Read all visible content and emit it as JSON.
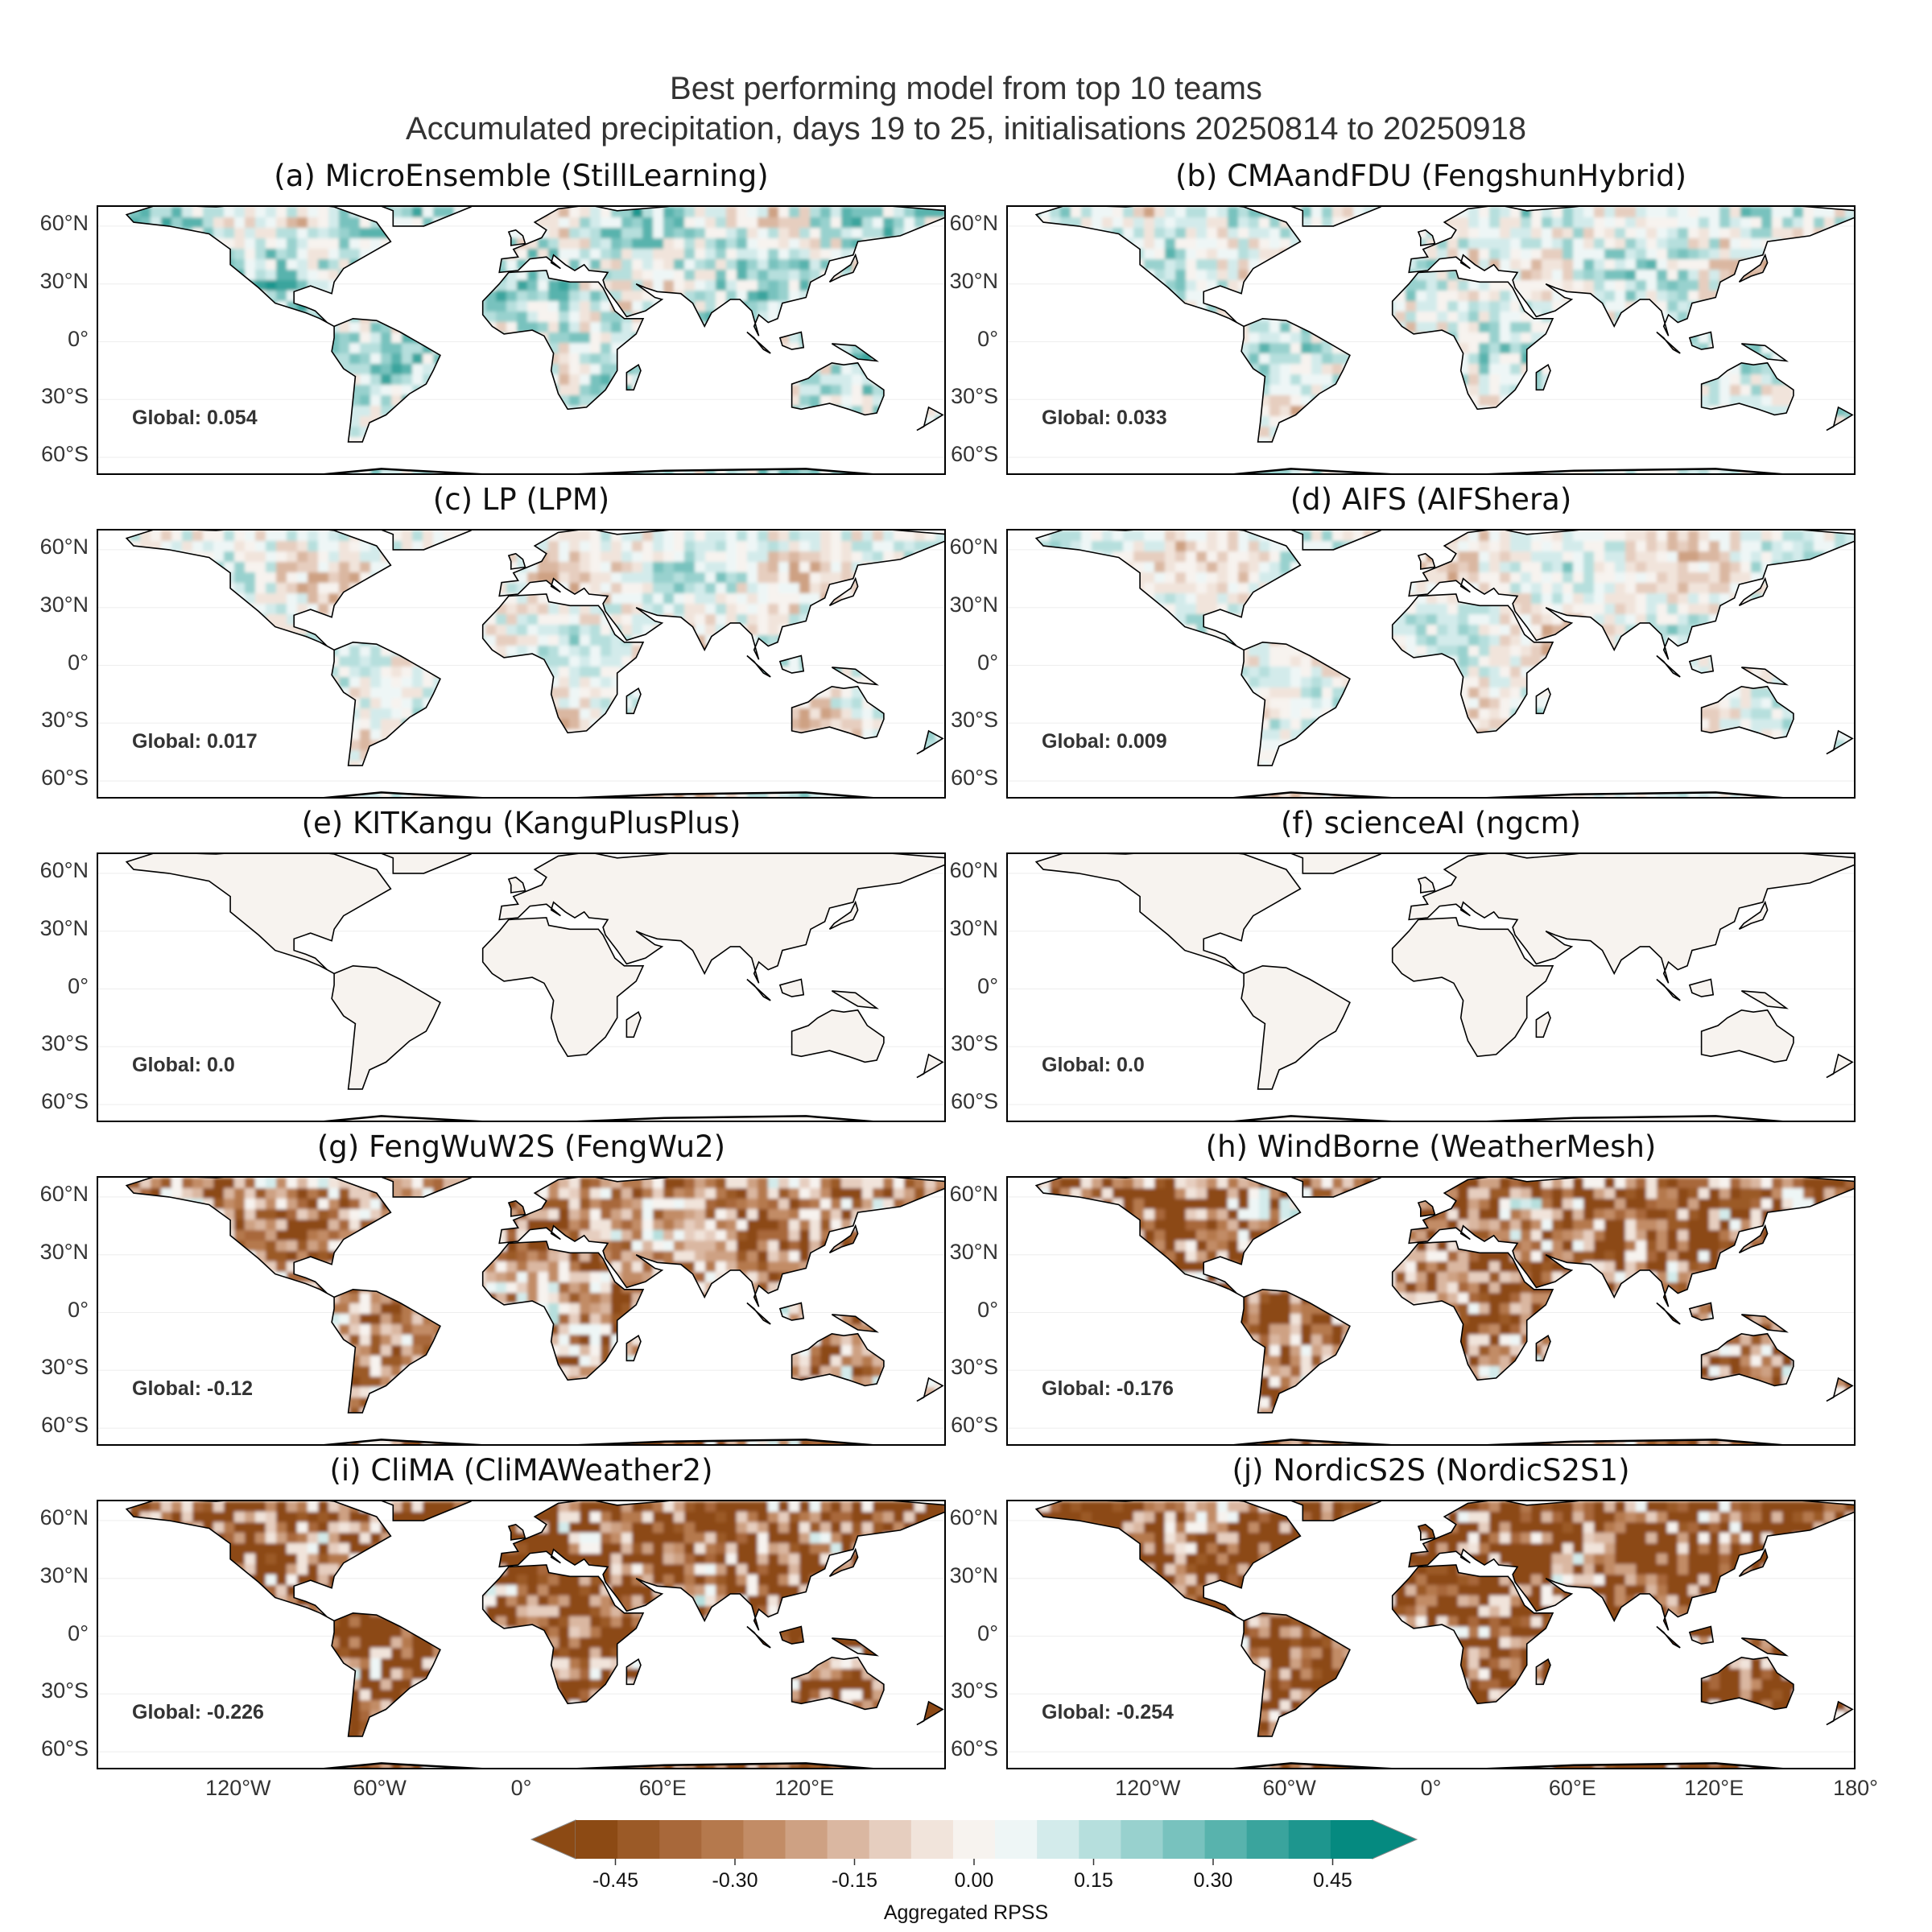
{
  "title_line1": "Best performing model from top 10 teams",
  "title_line2": "Accumulated precipitation, days 19 to 25, initialisations 20250814 to 20250918",
  "chart_data": {
    "type": "heatmap",
    "y_ticks": [
      "60°N",
      "30°N",
      "0°",
      "30°S",
      "60°S"
    ],
    "x_ticks_left": [
      "120°W",
      "60°W",
      "0°",
      "60°E",
      "120°E"
    ],
    "x_ticks_right": [
      "120°W",
      "60°W",
      "0°",
      "60°E",
      "120°E",
      "180°"
    ],
    "panels": [
      {
        "title": "(a) MicroEnsemble (StillLearning)",
        "global_label": "Global: 0.054",
        "global": 0.054
      },
      {
        "title": "(b) CMAandFDU (FengshunHybrid)",
        "global_label": "Global: 0.033",
        "global": 0.033
      },
      {
        "title": "(c) LP (LPM)",
        "global_label": "Global: 0.017",
        "global": 0.017
      },
      {
        "title": "(d) AIFS (AIFShera)",
        "global_label": "Global: 0.009",
        "global": 0.009
      },
      {
        "title": "(e) KITKangu (KanguPlusPlus)",
        "global_label": "Global: 0.0",
        "global": 0.0
      },
      {
        "title": "(f) scienceAI (ngcm)",
        "global_label": "Global: 0.0",
        "global": 0.0
      },
      {
        "title": "(g) FengWuW2S (FengWu2)",
        "global_label": "Global: -0.12",
        "global": -0.12
      },
      {
        "title": "(h) WindBorne (WeatherMesh)",
        "global_label": "Global: -0.176",
        "global": -0.176
      },
      {
        "title": "(i) CliMA (CliMAWeather2)",
        "global_label": "Global: -0.226",
        "global": -0.226
      },
      {
        "title": "(j) NordicS2S (NordicS2S1)",
        "global_label": "Global: -0.254",
        "global": -0.254
      }
    ],
    "colorbar": {
      "label": "Aggregated RPSS",
      "ticks": [
        "-0.45",
        "-0.30",
        "-0.15",
        "0.00",
        "0.15",
        "0.30",
        "0.45"
      ],
      "range": [
        -0.5,
        0.5
      ],
      "extend": "both",
      "colors": [
        "#8c4a14",
        "#9b5a27",
        "#a8683a",
        "#b5794d",
        "#c28c66",
        "#ceA183",
        "#dab7a1",
        "#e6cebf",
        "#f1e4db",
        "#f7f3ef",
        "#eef6f6",
        "#d3ebeb",
        "#b6dfdd",
        "#98d1ce",
        "#78c2be",
        "#58b3ad",
        "#3aa49d",
        "#1e968e",
        "#058a80"
      ]
    },
    "land_color_neutral": "#f7f3ef",
    "positive_color": "#058a80",
    "negative_color": "#8c4a14"
  }
}
